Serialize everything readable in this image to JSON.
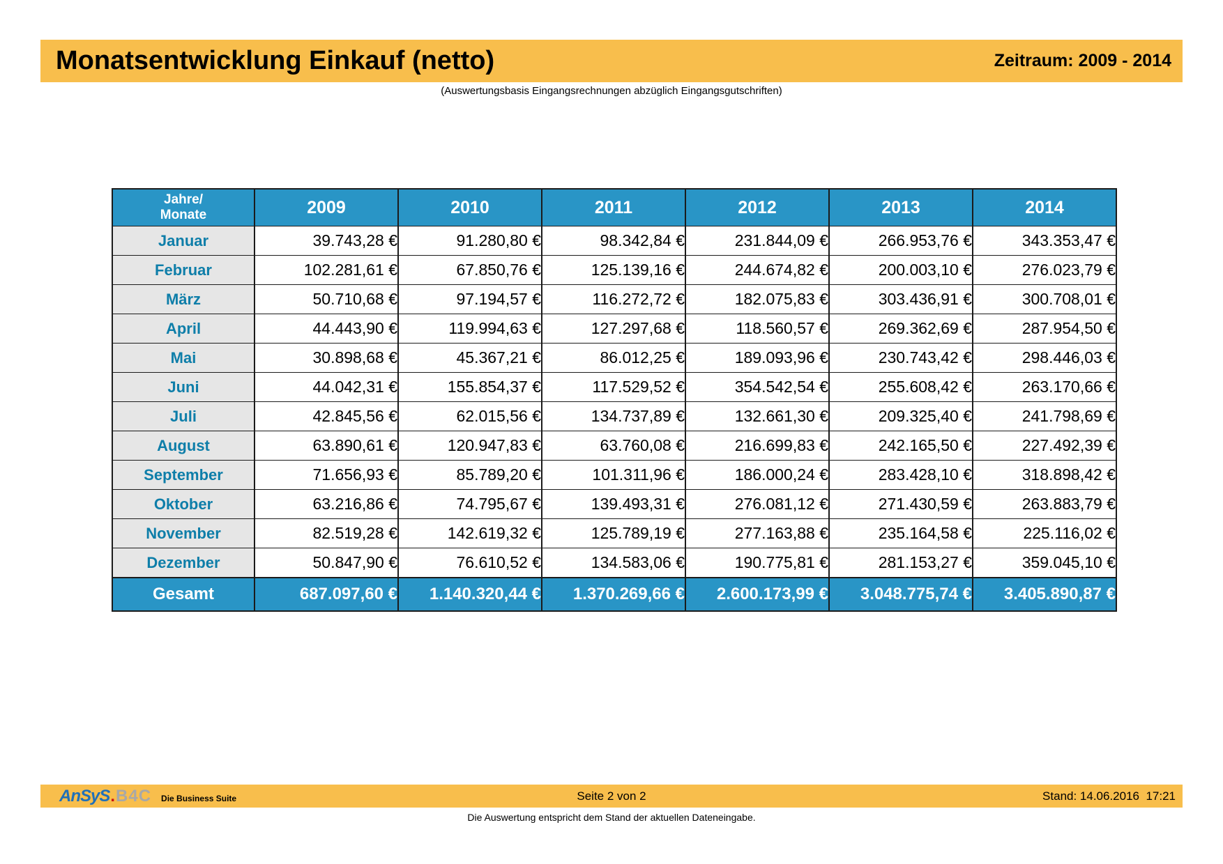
{
  "header": {
    "title": "Monatsentwicklung Einkauf (netto)",
    "period_label": "Zeitraum: 2009 - 2014",
    "subtitle": "(Auswertungsbasis Eingangsrechnungen abzüglich Eingangsgutschriften)"
  },
  "table": {
    "corner_lines": [
      "Jahre/",
      "Monate"
    ],
    "year_columns": [
      "2009",
      "2010",
      "2011",
      "2012",
      "2013",
      "2014"
    ],
    "rows": [
      {
        "month": "Januar",
        "values": [
          "39.743,28 €",
          "91.280,80 €",
          "98.342,84 €",
          "231.844,09 €",
          "266.953,76 €",
          "343.353,47 €"
        ]
      },
      {
        "month": "Februar",
        "values": [
          "102.281,61 €",
          "67.850,76 €",
          "125.139,16 €",
          "244.674,82 €",
          "200.003,10 €",
          "276.023,79 €"
        ]
      },
      {
        "month": "März",
        "values": [
          "50.710,68 €",
          "97.194,57 €",
          "116.272,72 €",
          "182.075,83 €",
          "303.436,91 €",
          "300.708,01 €"
        ]
      },
      {
        "month": "April",
        "values": [
          "44.443,90 €",
          "119.994,63 €",
          "127.297,68 €",
          "118.560,57 €",
          "269.362,69 €",
          "287.954,50 €"
        ]
      },
      {
        "month": "Mai",
        "values": [
          "30.898,68 €",
          "45.367,21 €",
          "86.012,25 €",
          "189.093,96 €",
          "230.743,42 €",
          "298.446,03 €"
        ]
      },
      {
        "month": "Juni",
        "values": [
          "44.042,31 €",
          "155.854,37 €",
          "117.529,52 €",
          "354.542,54 €",
          "255.608,42 €",
          "263.170,66 €"
        ]
      },
      {
        "month": "Juli",
        "values": [
          "42.845,56 €",
          "62.015,56 €",
          "134.737,89 €",
          "132.661,30 €",
          "209.325,40 €",
          "241.798,69 €"
        ]
      },
      {
        "month": "August",
        "values": [
          "63.890,61 €",
          "120.947,83 €",
          "63.760,08 €",
          "216.699,83 €",
          "242.165,50 €",
          "227.492,39 €"
        ]
      },
      {
        "month": "September",
        "values": [
          "71.656,93 €",
          "85.789,20 €",
          "101.311,96 €",
          "186.000,24 €",
          "283.428,10 €",
          "318.898,42 €"
        ]
      },
      {
        "month": "Oktober",
        "values": [
          "63.216,86 €",
          "74.795,67 €",
          "139.493,31 €",
          "276.081,12 €",
          "271.430,59 €",
          "263.883,79 €"
        ]
      },
      {
        "month": "November",
        "values": [
          "82.519,28 €",
          "142.619,32 €",
          "125.789,19 €",
          "277.163,88 €",
          "235.164,58 €",
          "225.116,02 €"
        ]
      },
      {
        "month": "Dezember",
        "values": [
          "50.847,90 €",
          "76.610,52 €",
          "134.583,06 €",
          "190.775,81 €",
          "281.153,27 €",
          "359.045,10 €"
        ]
      }
    ],
    "total_row": {
      "label": "Gesamt",
      "values": [
        "687.097,60 €",
        "1.140.320,44 €",
        "1.370.269,66 €",
        "2.600.173,99 €",
        "3.048.775,74 €",
        "3.405.890,87 €"
      ]
    }
  },
  "footer": {
    "logo": {
      "brand": "AnSyS",
      "dot": ".",
      "product": "B4C",
      "tagline": "Die Business Suite"
    },
    "page_label": "Seite 2 von 2",
    "stand_label": "Stand: 14.06.2016  17:21",
    "note": "Die Auswertung entspricht dem Stand der aktuellen Dateneingabe."
  },
  "colors": {
    "banner_orange": "#F8BE4C",
    "header_blue": "#2995C6",
    "month_text_blue": "#0E7EA9",
    "month_cell_gray": "#E6E6E6",
    "border_dark": "#1B1B1B",
    "logo_blue": "#2070B8",
    "logo_gray": "#A8A8A8",
    "logo_red": "#CC1111",
    "text_black": "#000000",
    "page_white": "#FFFFFF"
  }
}
